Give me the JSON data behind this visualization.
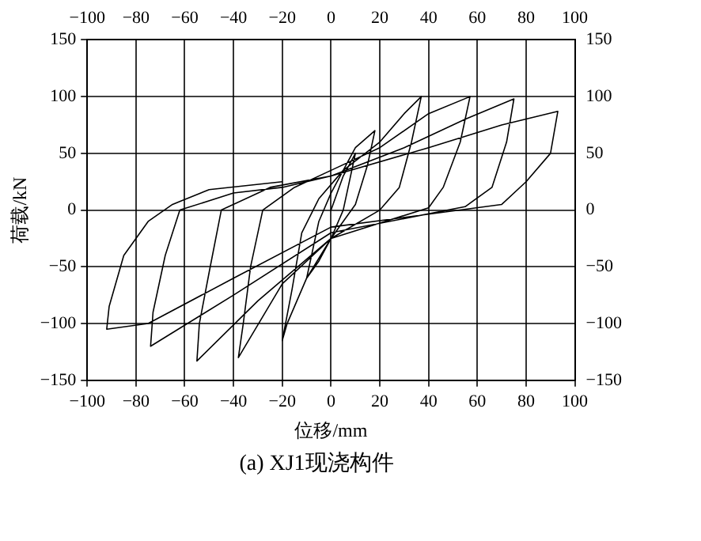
{
  "chart_data": {
    "type": "line",
    "xlabel": "位移/mm",
    "ylabel": "荷载/kN",
    "annotations": [
      "(a) XJ1现浇构件"
    ],
    "xlim": [
      -100,
      100
    ],
    "xticks": [
      -100,
      -80,
      -60,
      -40,
      -20,
      0,
      20,
      40,
      60,
      80,
      100
    ],
    "x2lim": [
      -100,
      100
    ],
    "x2ticks": [
      -100,
      -80,
      -60,
      -40,
      -20,
      0,
      20,
      40,
      60,
      80,
      100
    ],
    "ylim": [
      -150,
      150
    ],
    "yticks": [
      -150,
      -100,
      -50,
      0,
      50,
      100,
      150
    ],
    "y2lim": [
      -150,
      150
    ],
    "y2ticks": [
      -150,
      -100,
      -50,
      0,
      50,
      100,
      150
    ],
    "grid": true,
    "line_style": "solid",
    "series": [
      {
        "color": "#000000",
        "x": [
          0,
          5,
          10,
          8,
          5,
          0,
          -5,
          -10,
          -8,
          -5,
          0,
          5,
          10,
          18,
          15,
          10,
          0,
          -10,
          -18,
          -20,
          -16,
          -12,
          -5,
          5,
          20,
          30,
          37,
          33,
          28,
          20,
          0,
          -20,
          -38,
          -36,
          -33,
          -28,
          -15,
          0,
          20,
          40,
          57,
          53,
          46,
          40,
          0,
          -30,
          -55,
          -54,
          -50,
          -45,
          -25,
          0,
          30,
          55,
          75,
          72,
          66,
          55,
          0,
          -40,
          -74,
          -73,
          -68,
          -62,
          -40,
          -20,
          0,
          40,
          70,
          93,
          90,
          80,
          70,
          0,
          -40,
          -75,
          -92,
          -91,
          -85,
          -75,
          -65,
          -50,
          -20
        ],
        "values": [
          0,
          30,
          50,
          30,
          0,
          -25,
          -45,
          -60,
          -40,
          -10,
          15,
          35,
          55,
          70,
          40,
          5,
          -25,
          -60,
          -100,
          -115,
          -70,
          -20,
          10,
          35,
          60,
          85,
          100,
          60,
          20,
          0,
          -25,
          -65,
          -130,
          -100,
          -50,
          0,
          20,
          35,
          55,
          85,
          100,
          60,
          20,
          2,
          -25,
          -80,
          -133,
          -100,
          -55,
          0,
          20,
          30,
          55,
          80,
          98,
          60,
          20,
          3,
          -20,
          -75,
          -120,
          -90,
          -40,
          0,
          15,
          20,
          30,
          55,
          75,
          87,
          50,
          25,
          5,
          -15,
          -60,
          -100,
          -105,
          -85,
          -40,
          -10,
          5,
          18,
          25
        ]
      }
    ]
  }
}
